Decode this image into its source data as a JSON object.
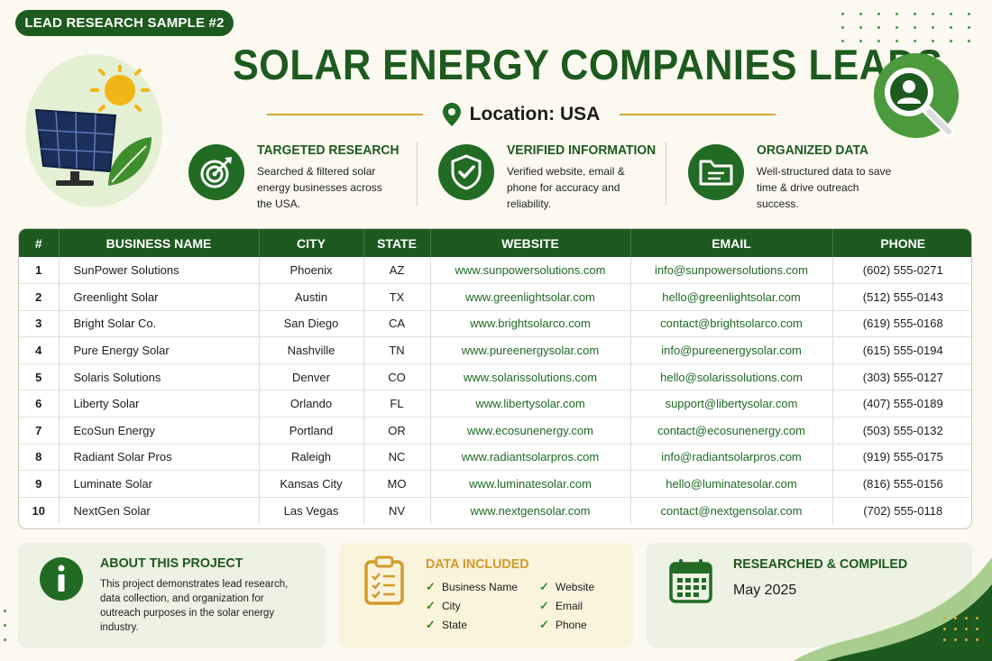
{
  "badge": "LEAD RESEARCH SAMPLE #2",
  "title": "SOLAR ENERGY COMPANIES LEADS",
  "location": "Location: USA",
  "features": [
    {
      "title": "TARGETED RESEARCH",
      "lines": [
        "Searched & filtered solar",
        "energy businesses across",
        "the USA."
      ],
      "icon": "target-icon"
    },
    {
      "title": "VERIFIED INFORMATION",
      "lines": [
        "Verified website, email &",
        "phone for accuracy and",
        "reliability."
      ],
      "icon": "shield-check-icon"
    },
    {
      "title": "ORGANIZED DATA",
      "lines": [
        "Well-structured data to save",
        "time & drive outreach",
        "success."
      ],
      "icon": "folder-icon"
    }
  ],
  "table": {
    "headers": [
      "#",
      "BUSINESS NAME",
      "CITY",
      "STATE",
      "WEBSITE",
      "EMAIL",
      "PHONE"
    ],
    "rows": [
      [
        "1",
        "SunPower Solutions",
        "Phoenix",
        "AZ",
        "www.sunpowersolutions.com",
        "info@sunpowersolutions.com",
        "(602) 555-0271"
      ],
      [
        "2",
        "Greenlight Solar",
        "Austin",
        "TX",
        "www.greenlightsolar.com",
        "hello@greenlightsolar.com",
        "(512) 555-0143"
      ],
      [
        "3",
        "Bright Solar Co.",
        "San Diego",
        "CA",
        "www.brightsolarco.com",
        "contact@brightsolarco.com",
        "(619) 555-0168"
      ],
      [
        "4",
        "Pure Energy Solar",
        "Nashville",
        "TN",
        "www.pureenergysolar.com",
        "info@pureenergysolar.com",
        "(615) 555-0194"
      ],
      [
        "5",
        "Solaris Solutions",
        "Denver",
        "CO",
        "www.solarissolutions.com",
        "hello@solarissolutions.com",
        "(303) 555-0127"
      ],
      [
        "6",
        "Liberty Solar",
        "Orlando",
        "FL",
        "www.libertysolar.com",
        "support@libertysolar.com",
        "(407) 555-0189"
      ],
      [
        "7",
        "EcoSun Energy",
        "Portland",
        "OR",
        "www.ecosunenergy.com",
        "contact@ecosunenergy.com",
        "(503) 555-0132"
      ],
      [
        "8",
        "Radiant Solar Pros",
        "Raleigh",
        "NC",
        "www.radiantsolarpros.com",
        "info@radiantsolarpros.com",
        "(919) 555-0175"
      ],
      [
        "9",
        "Luminate Solar",
        "Kansas City",
        "MO",
        "www.luminatesolar.com",
        "hello@luminatesolar.com",
        "(816) 555-0156"
      ],
      [
        "10",
        "NextGen Solar",
        "Las Vegas",
        "NV",
        "www.nextgensolar.com",
        "contact@nextgensolar.com",
        "(702) 555-0118"
      ]
    ]
  },
  "about": {
    "title": "ABOUT THIS PROJECT",
    "lines": [
      "This project demonstrates lead research,",
      "data collection, and organization for",
      "outreach purposes in the solar energy",
      "industry."
    ]
  },
  "data_included": {
    "title": "DATA INCLUDED",
    "col1": [
      "Business Name",
      "City",
      "State"
    ],
    "col2": [
      "Website",
      "Email",
      "Phone"
    ]
  },
  "compiled": {
    "title": "RESEARCHED & COMPILED",
    "date": "May 2025"
  },
  "colors": {
    "primary": "#1d5a1f",
    "accent": "#d8a53c",
    "background": "#fbf9f0"
  }
}
